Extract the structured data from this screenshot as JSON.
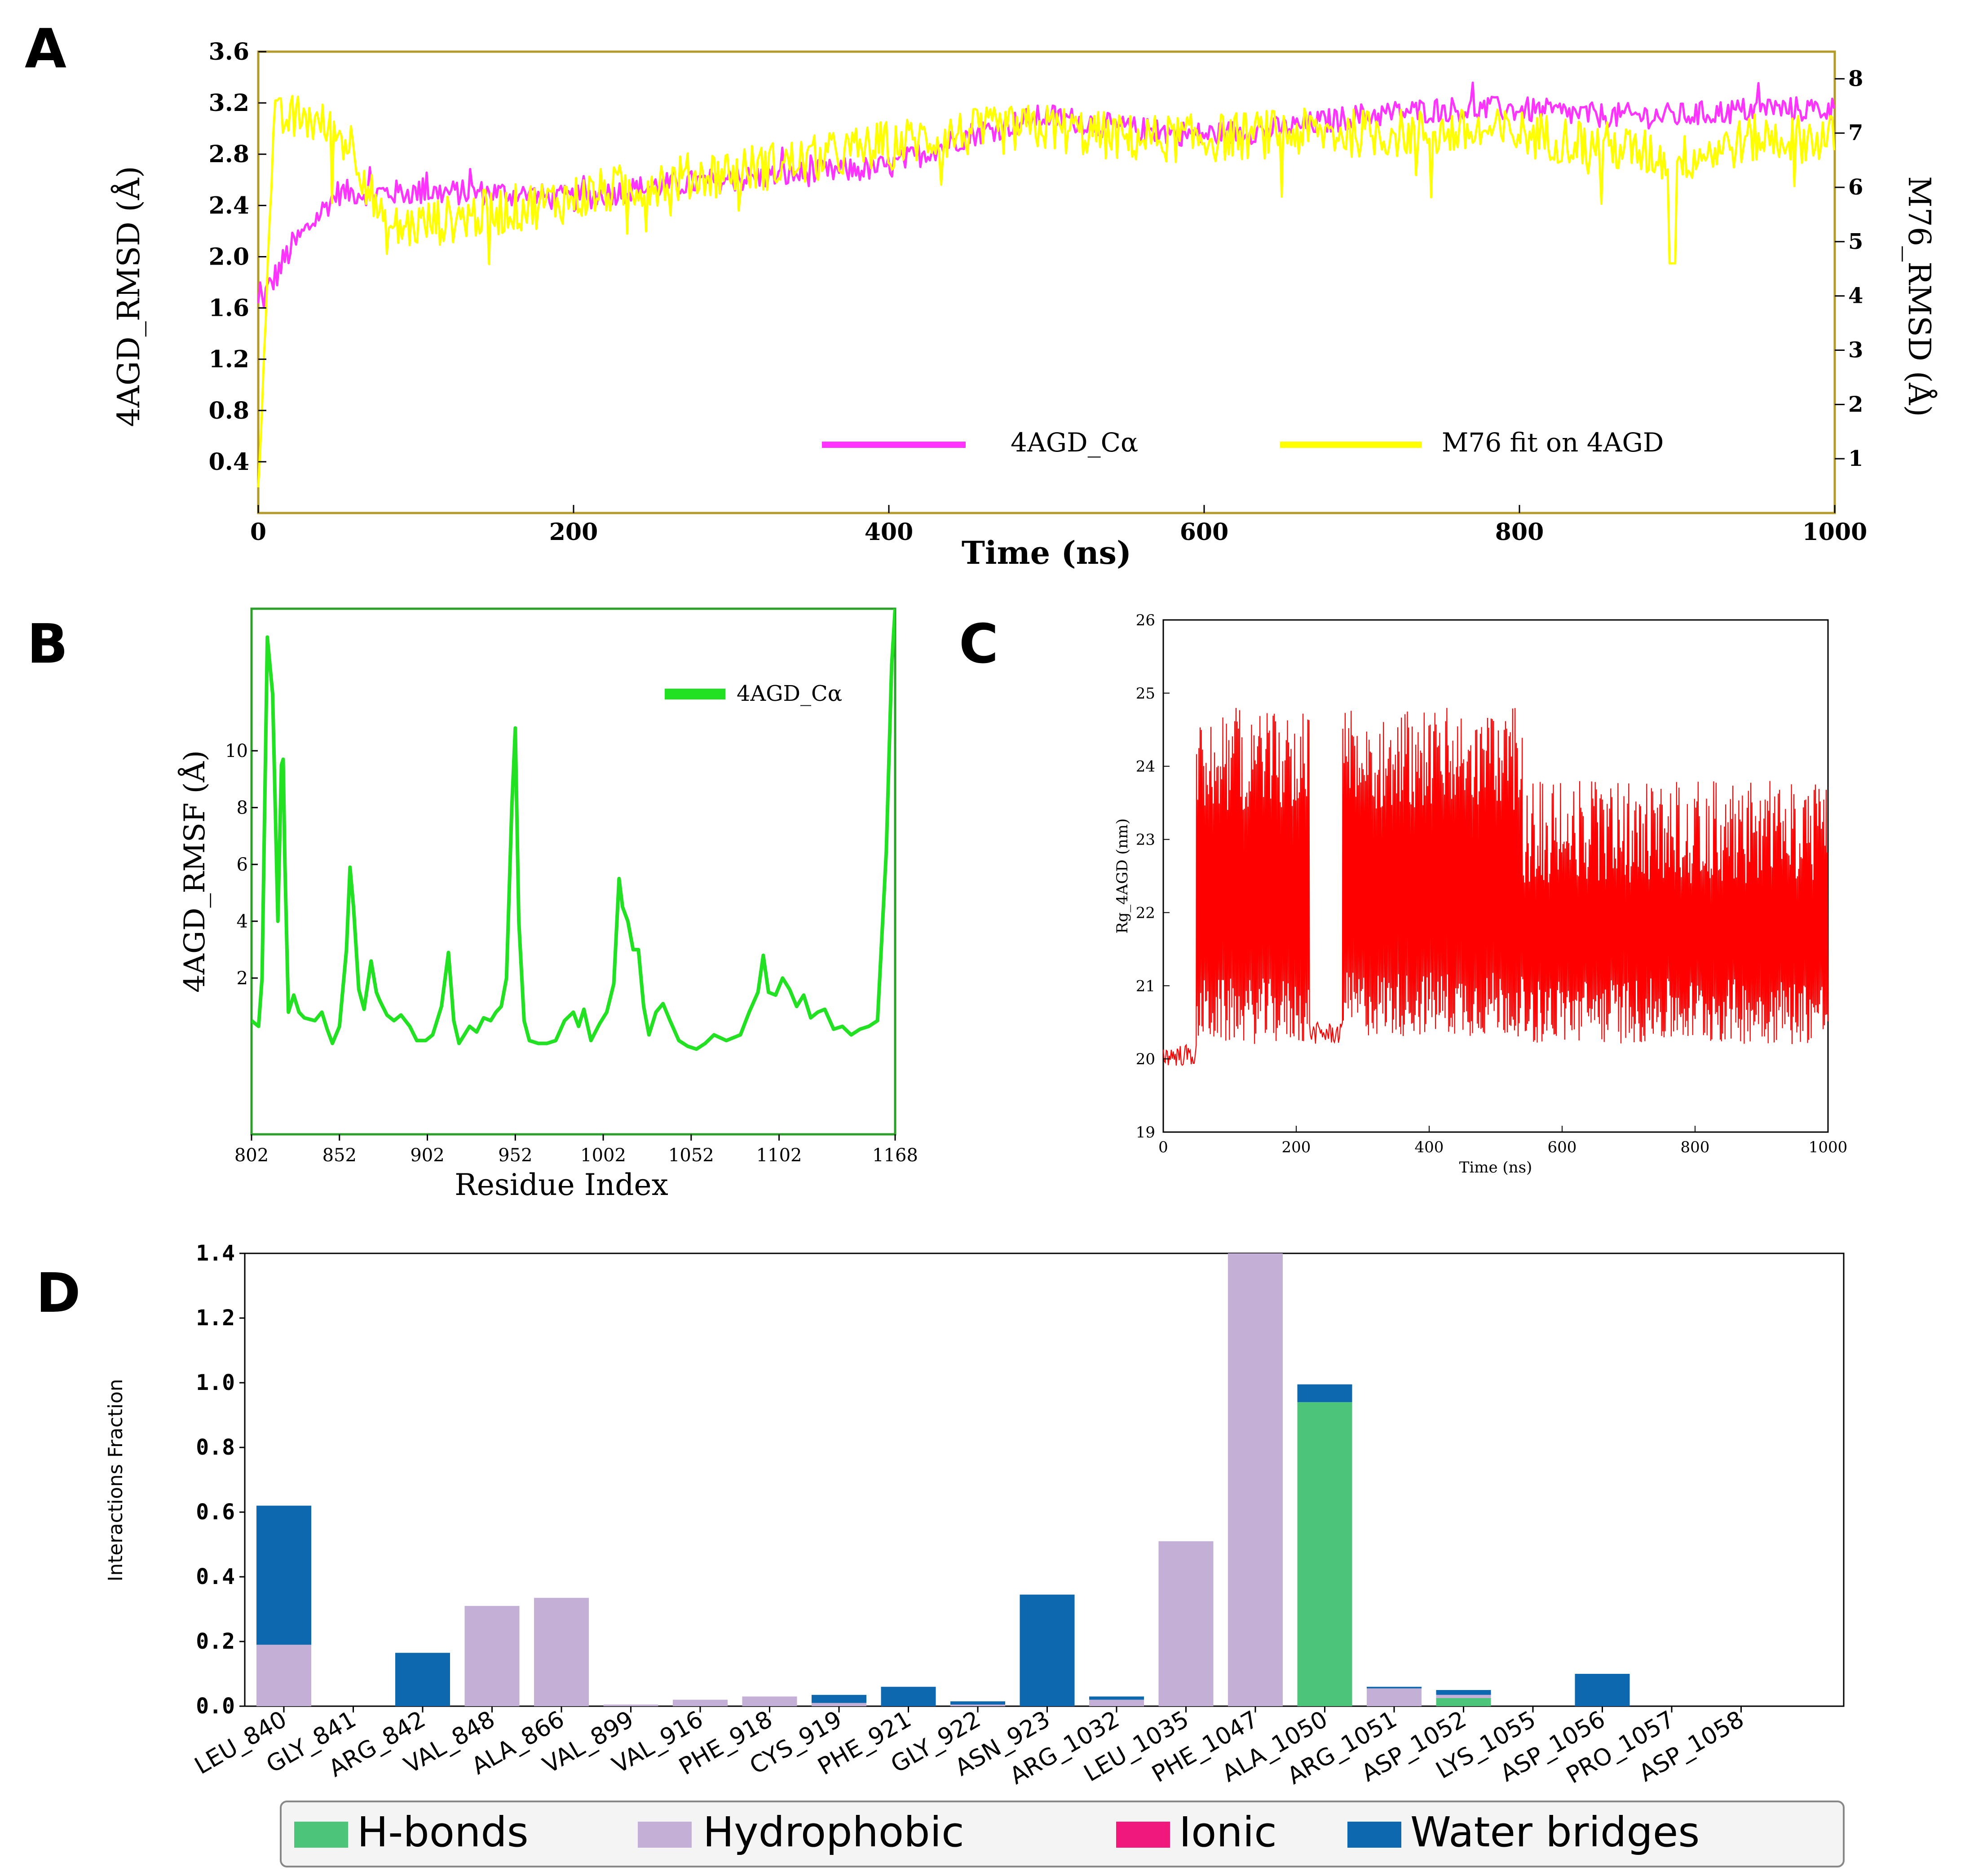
{
  "figure": {
    "panels": [
      "A",
      "B",
      "C",
      "D"
    ]
  },
  "colors": {
    "magenta": "#ff33ff",
    "yellow": "#ffff00",
    "green": "#22e022",
    "red": "#ff0000",
    "hbond": "#4cc47a",
    "hydrophobic": "#c4b0d6",
    "ionic": "#f0187a",
    "water": "#0e68b0",
    "frame_gold": "#b39a2b"
  },
  "chart_data": [
    {
      "panel": "A",
      "type": "line",
      "title": "",
      "xlabel": "Time (ns)",
      "ylabel_left": "4AGD_RMSD (Å)",
      "ylabel_right": "M76_RMSD (Å)",
      "xlim": [
        0,
        1000
      ],
      "ylim_left": [
        0,
        3.6
      ],
      "ylim_right": [
        0,
        8.5
      ],
      "x_ticks": [
        "0",
        "200",
        "400",
        "600",
        "800",
        "1000"
      ],
      "y_ticks_left": [
        "0.4",
        "0.8",
        "1.2",
        "1.6",
        "2.0",
        "2.4",
        "2.8",
        "3.2",
        "3.6"
      ],
      "y_ticks_right": [
        "1",
        "2",
        "3",
        "4",
        "5",
        "6",
        "7",
        "8"
      ],
      "legend": [
        "4AGD_Cα",
        "M76 fit on 4AGD"
      ],
      "series": [
        {
          "name": "4AGD_Cα",
          "axis": "left",
          "x": [
            0,
            20,
            50,
            100,
            150,
            200,
            250,
            300,
            350,
            400,
            450,
            500,
            550,
            600,
            650,
            700,
            750,
            800,
            850,
            900,
            950,
            1000
          ],
          "values": [
            1.6,
            2.05,
            2.5,
            2.5,
            2.5,
            2.45,
            2.55,
            2.6,
            2.65,
            2.7,
            2.95,
            3.1,
            3.0,
            2.95,
            3.0,
            3.1,
            3.15,
            3.15,
            3.1,
            3.1,
            3.15,
            3.15
          ]
        },
        {
          "name": "M76 fit on 4AGD",
          "axis": "right",
          "x": [
            0,
            10,
            30,
            60,
            80,
            120,
            160,
            200,
            250,
            300,
            350,
            400,
            450,
            500,
            550,
            600,
            650,
            700,
            750,
            800,
            850,
            900,
            950,
            1000
          ],
          "values": [
            0.5,
            7.2,
            7.3,
            6.8,
            5.2,
            5.4,
            5.6,
            5.8,
            6.1,
            6.3,
            6.5,
            6.8,
            7.0,
            7.1,
            6.9,
            6.9,
            7.0,
            7.0,
            7.0,
            7.0,
            6.8,
            6.5,
            6.9,
            6.9
          ]
        }
      ]
    },
    {
      "panel": "B",
      "type": "line",
      "title": "",
      "xlabel": "Residue Index",
      "ylabel": "4AGD_RMSF (Å)",
      "xlim": [
        802,
        1168
      ],
      "ylim": [
        -3.5,
        15
      ],
      "x_ticks": [
        "802",
        "852",
        "902",
        "952",
        "1002",
        "1052",
        "1102",
        "1168"
      ],
      "y_ticks": [
        "2",
        "4",
        "6",
        "8",
        "10"
      ],
      "legend": [
        "4AGD_Cα"
      ],
      "series": [
        {
          "name": "4AGD_Cα",
          "x": [
            802,
            806,
            808,
            811,
            814,
            817,
            819,
            820,
            821,
            823,
            826,
            829,
            832,
            838,
            842,
            845,
            848,
            852,
            856,
            858,
            860,
            863,
            866,
            870,
            873,
            875,
            879,
            883,
            887,
            892,
            896,
            901,
            905,
            910,
            914,
            917,
            920,
            923,
            926,
            930,
            934,
            938,
            941,
            944,
            947,
            950,
            952,
            954,
            957,
            960,
            965,
            970,
            975,
            980,
            985,
            988,
            991,
            995,
            1000,
            1004,
            1008,
            1011,
            1013,
            1016,
            1019,
            1022,
            1025,
            1028,
            1032,
            1036,
            1040,
            1045,
            1050,
            1055,
            1060,
            1065,
            1072,
            1080,
            1085,
            1090,
            1093,
            1096,
            1100,
            1104,
            1108,
            1112,
            1116,
            1120,
            1124,
            1128,
            1133,
            1138,
            1143,
            1148,
            1153,
            1158,
            1163,
            1166,
            1168
          ],
          "values": [
            0.5,
            0.3,
            2.0,
            14.0,
            12.0,
            4.0,
            9.5,
            9.7,
            6.0,
            0.8,
            1.4,
            0.8,
            0.6,
            0.5,
            0.8,
            0.2,
            -0.3,
            0.3,
            3.0,
            5.9,
            4.5,
            1.6,
            0.9,
            2.6,
            1.5,
            1.2,
            0.7,
            0.5,
            0.7,
            0.3,
            -0.2,
            -0.2,
            0.0,
            1.0,
            2.9,
            0.5,
            -0.3,
            0.0,
            0.3,
            0.1,
            0.6,
            0.5,
            0.8,
            1.0,
            2.0,
            8.0,
            10.8,
            4.0,
            0.5,
            -0.2,
            -0.3,
            -0.3,
            -0.2,
            0.5,
            0.8,
            0.3,
            0.9,
            -0.2,
            0.4,
            0.8,
            1.8,
            5.5,
            4.5,
            4.0,
            3.0,
            3.0,
            1.0,
            0.0,
            0.8,
            1.1,
            0.5,
            -0.2,
            -0.4,
            -0.5,
            -0.3,
            0.0,
            -0.2,
            0.0,
            0.8,
            1.5,
            2.8,
            1.5,
            1.4,
            2.0,
            1.6,
            1.0,
            1.4,
            0.6,
            0.8,
            0.9,
            0.2,
            0.3,
            0.0,
            0.2,
            0.3,
            0.5,
            6.5,
            13.0,
            15.0
          ]
        }
      ]
    },
    {
      "panel": "C",
      "type": "line",
      "title": "",
      "xlabel": "Time (ns)",
      "ylabel": "Rg_4AGD (nm)",
      "xlim": [
        0,
        1000
      ],
      "ylim": [
        19,
        26
      ],
      "x_ticks": [
        "0",
        "200",
        "400",
        "600",
        "800",
        "1000"
      ],
      "y_ticks": [
        "19",
        "20",
        "21",
        "22",
        "23",
        "24",
        "25",
        "26"
      ],
      "series": [
        {
          "name": "Rg_4AGD",
          "segments": [
            {
              "x": [
                0,
                50
              ],
              "low": 19.9,
              "high": 20.2
            },
            {
              "x": [
                50,
                220
              ],
              "low": 20.2,
              "high": 24.8
            },
            {
              "x": [
                220,
                270
              ],
              "low": 20.2,
              "high": 20.5
            },
            {
              "x": [
                270,
                540
              ],
              "low": 20.3,
              "high": 24.8
            },
            {
              "x": [
                540,
                1000
              ],
              "low": 20.2,
              "high": 23.8
            }
          ]
        }
      ]
    },
    {
      "panel": "D",
      "type": "bar",
      "stacked": true,
      "title": "",
      "xlabel": "",
      "ylabel": "Interactions Fraction",
      "ylim": [
        0,
        1.4
      ],
      "y_ticks": [
        "0.0",
        "0.2",
        "0.4",
        "0.6",
        "0.8",
        "1.0",
        "1.2",
        "1.4"
      ],
      "categories": [
        "LEU_840",
        "GLY_841",
        "ARG_842",
        "VAL_848",
        "ALA_866",
        "VAL_899",
        "VAL_916",
        "PHE_918",
        "CYS_919",
        "PHE_921",
        "GLY_922",
        "ASN_923",
        "ARG_1032",
        "LEU_1035",
        "PHE_1047",
        "ALA_1050",
        "ARG_1051",
        "ASP_1052",
        "LYS_1055",
        "ASP_1056",
        "PRO_1057",
        "ASP_1058"
      ],
      "legend": [
        "H-bonds",
        "Hydrophobic",
        "Ionic",
        "Water bridges"
      ],
      "series": [
        {
          "name": "H-bonds",
          "values": [
            0,
            0,
            0,
            0,
            0,
            0,
            0,
            0,
            0,
            0,
            0,
            0,
            0,
            0,
            0,
            0.94,
            0,
            0.025,
            0,
            0,
            0,
            0
          ]
        },
        {
          "name": "Hydrophobic",
          "values": [
            0.19,
            0,
            0,
            0.31,
            0.335,
            0.005,
            0.02,
            0.03,
            0.01,
            0,
            0.005,
            0,
            0.02,
            0.51,
            1.41,
            0,
            0.055,
            0.01,
            0,
            0,
            0,
            0
          ]
        },
        {
          "name": "Ionic",
          "values": [
            0,
            0,
            0,
            0,
            0,
            0,
            0,
            0,
            0,
            0,
            0,
            0,
            0,
            0,
            0,
            0,
            0,
            0,
            0,
            0,
            0,
            0
          ]
        },
        {
          "name": "Water bridges",
          "values": [
            0.43,
            0,
            0.165,
            0,
            0,
            0,
            0,
            0,
            0.025,
            0.06,
            0.01,
            0.345,
            0.01,
            0,
            0,
            0.055,
            0.005,
            0.015,
            0,
            0.1,
            0,
            0
          ]
        }
      ]
    }
  ]
}
